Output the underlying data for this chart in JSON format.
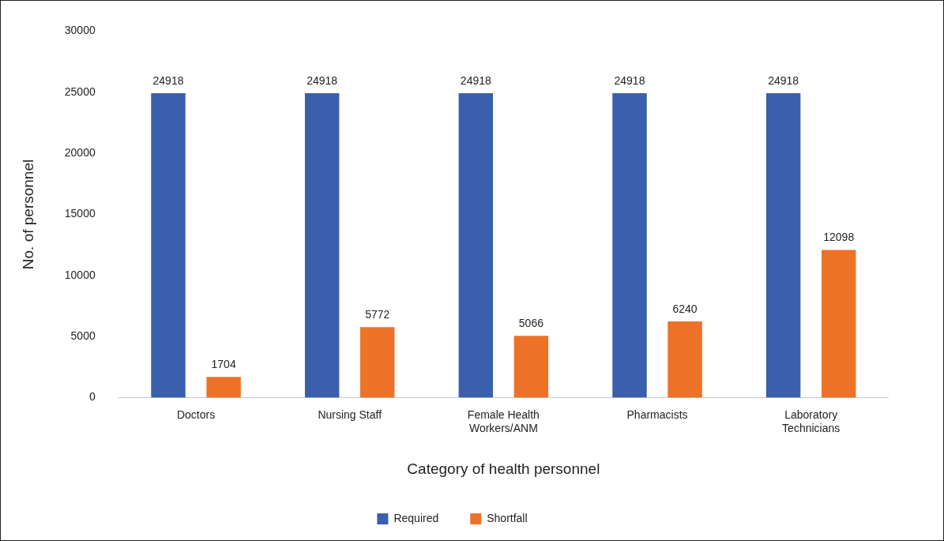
{
  "chart_data": {
    "type": "bar",
    "xlabel": "Category of health personnel",
    "ylabel": "No. of personnel",
    "categories": [
      "Doctors",
      "Nursing Staff",
      "Female Health Workers/ANM",
      "Pharmacists",
      "Laboratory Technicians"
    ],
    "series": [
      {
        "name": "Required",
        "color": "#3a5fad",
        "values": [
          24918,
          24918,
          24918,
          24918,
          24918
        ]
      },
      {
        "name": "Shortfall",
        "color": "#ee7128",
        "values": [
          1704,
          5772,
          5066,
          6240,
          12098
        ]
      }
    ],
    "ylim": [
      0,
      30000
    ],
    "yticks": [
      0,
      5000,
      10000,
      15000,
      20000,
      25000,
      30000
    ],
    "grid": false,
    "legend": "bottom",
    "data_labels": true
  }
}
